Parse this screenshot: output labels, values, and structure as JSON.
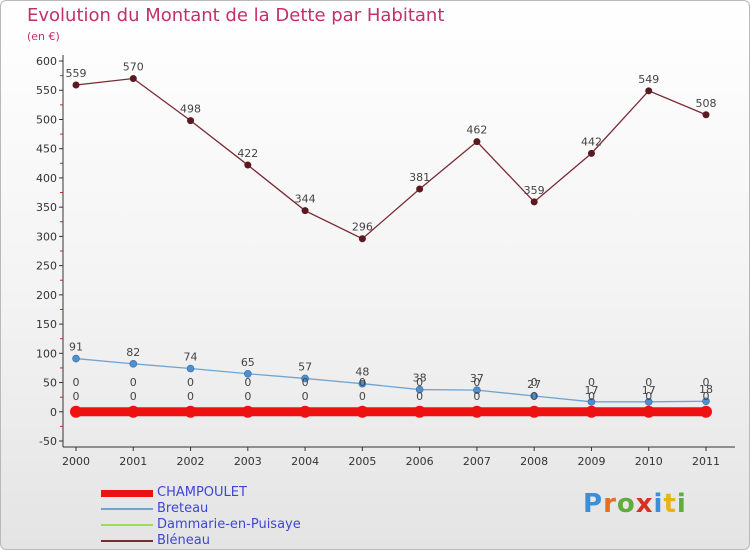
{
  "header": {
    "title": "Evolution du Montant de la Dette par Habitant",
    "subtitle": "(en €)"
  },
  "chart_data": {
    "type": "line",
    "title": "Evolution du Montant de la Dette par Habitant",
    "subtitle": "(en €)",
    "xlabel": "",
    "ylabel": "",
    "x": [
      2000,
      2001,
      2002,
      2003,
      2004,
      2005,
      2006,
      2007,
      2008,
      2009,
      2010,
      2011
    ],
    "ylim": [
      -50,
      600
    ],
    "yticks": [
      -50,
      0,
      50,
      100,
      150,
      200,
      250,
      300,
      350,
      400,
      450,
      500,
      550,
      600
    ],
    "grid": false,
    "legend_position": "bottom-left",
    "series": [
      {
        "name": "CHAMPOULET",
        "color": "#ee1111",
        "values": [
          0,
          0,
          0,
          0,
          0,
          0,
          0,
          0,
          0,
          0,
          0,
          0
        ]
      },
      {
        "name": "Breteau",
        "color": "#6fa3d3",
        "values": [
          91,
          82,
          74,
          65,
          57,
          48,
          38,
          37,
          27,
          17,
          17,
          18
        ]
      },
      {
        "name": "Dammarie-en-Puisaye",
        "color": "#99dd55",
        "values": [
          0,
          0,
          0,
          0,
          0,
          0,
          0,
          0,
          0,
          0,
          0,
          0
        ]
      },
      {
        "name": "Bléneau",
        "color": "#7a2a33",
        "values": [
          559,
          570,
          498,
          422,
          344,
          296,
          381,
          462,
          359,
          442,
          549,
          508
        ]
      }
    ]
  },
  "branding": {
    "logo_text": "Proxiti",
    "logo_colors": [
      "#3b8fd9",
      "#e8701a",
      "#5fae3c",
      "#d7321f",
      "#3b8fd9",
      "#e8b21a",
      "#5fae3c"
    ]
  }
}
